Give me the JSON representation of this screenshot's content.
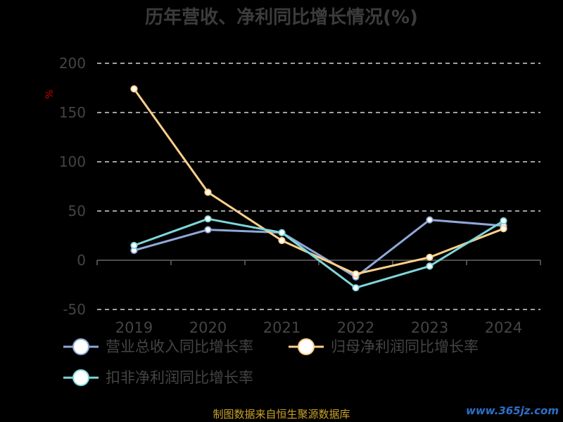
{
  "chart_data": {
    "type": "line",
    "title": "历年营收、净利同比增长情况(%)",
    "ylabel": "%",
    "categories": [
      "2019",
      "2020",
      "2021",
      "2022",
      "2023",
      "2024"
    ],
    "ylim": [
      -50,
      200
    ],
    "yticks": [
      200,
      150,
      100,
      50,
      0,
      -50
    ],
    "grid": true,
    "legend_position": "bottom",
    "series": [
      {
        "name": "营业总收入同比增长率",
        "color": "#8fa8d8",
        "values": [
          10,
          31,
          28,
          -17,
          41,
          35
        ]
      },
      {
        "name": "归母净利润同比增长率",
        "color": "#ffd08a",
        "values": [
          174,
          69,
          20,
          -14,
          3,
          32
        ]
      },
      {
        "name": "扣非净利润同比增长率",
        "color": "#7fd6d9",
        "values": [
          15,
          42,
          28,
          -28,
          -6,
          40
        ]
      }
    ]
  },
  "footer": {
    "source": "制图数据来自恒生聚源数据库",
    "watermark": "www.365jz.com"
  },
  "colors": {
    "background": "#000000",
    "title": "#3c3c3c",
    "axis_text": "#444444",
    "grid": "#ffffff",
    "ylabel": "#cc0000"
  }
}
